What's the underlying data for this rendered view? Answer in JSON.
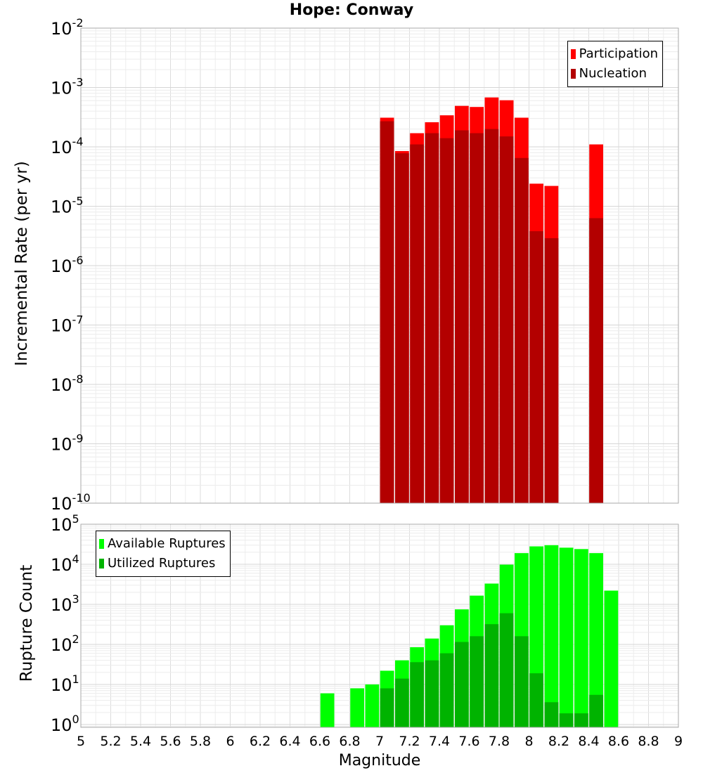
{
  "title": "Hope: Conway",
  "chart_data": [
    {
      "type": "bar",
      "ylabel": "Incremental Rate (per yr)",
      "xlabel": "",
      "yscale": "log",
      "ylim": [
        1e-10,
        0.01
      ],
      "xlim": [
        5,
        9
      ],
      "grid": true,
      "legend_position": "top-right",
      "bin_width": 0.1,
      "y_tick_labels": [
        {
          "base": "10",
          "exp": "-10"
        },
        {
          "base": "10",
          "exp": "-9"
        },
        {
          "base": "10",
          "exp": "-8"
        },
        {
          "base": "10",
          "exp": "-7"
        },
        {
          "base": "10",
          "exp": "-6"
        },
        {
          "base": "10",
          "exp": "-5"
        },
        {
          "base": "10",
          "exp": "-4"
        },
        {
          "base": "10",
          "exp": "-3"
        },
        {
          "base": "10",
          "exp": "-2"
        }
      ],
      "x": [
        7.05,
        7.15,
        7.25,
        7.35,
        7.45,
        7.55,
        7.65,
        7.75,
        7.85,
        7.95,
        8.05,
        8.15,
        8.45
      ],
      "series": [
        {
          "name": "Participation",
          "color": "#ff0000",
          "values": [
            0.00031,
            8.5e-05,
            0.00017,
            0.00026,
            0.00034,
            0.00049,
            0.00047,
            0.00068,
            0.00061,
            0.00031,
            2.4e-05,
            2.2e-05,
            0.00011
          ]
        },
        {
          "name": "Nucleation",
          "color": "#b30000",
          "values": [
            0.00027,
            7.8e-05,
            0.00011,
            0.00017,
            0.00014,
            0.00019,
            0.00017,
            0.0002,
            0.00015,
            6.5e-05,
            3.8e-06,
            2.9e-06,
            6.3e-06
          ]
        }
      ]
    },
    {
      "type": "bar",
      "ylabel": "Rupture Count",
      "xlabel": "Magnitude",
      "yscale": "log",
      "ylim": [
        0.85,
        100000
      ],
      "xlim": [
        5,
        9
      ],
      "grid": true,
      "legend_position": "top-left",
      "bin_width": 0.1,
      "x_tick_labels": [
        "5",
        "5.2",
        "5.4",
        "5.6",
        "5.8",
        "6",
        "6.2",
        "6.4",
        "6.6",
        "6.8",
        "7",
        "7.2",
        "7.4",
        "7.6",
        "7.8",
        "8",
        "8.2",
        "8.4",
        "8.6",
        "8.8",
        "9"
      ],
      "y_tick_labels": [
        {
          "base": "10",
          "exp": "0"
        },
        {
          "base": "10",
          "exp": "1"
        },
        {
          "base": "10",
          "exp": "2"
        },
        {
          "base": "10",
          "exp": "3"
        },
        {
          "base": "10",
          "exp": "4"
        },
        {
          "base": "10",
          "exp": "5"
        }
      ],
      "x": [
        6.65,
        6.85,
        6.95,
        7.05,
        7.15,
        7.25,
        7.35,
        7.45,
        7.55,
        7.65,
        7.75,
        7.85,
        7.95,
        8.05,
        8.15,
        8.25,
        8.35,
        8.45,
        8.55
      ],
      "series": [
        {
          "name": "Available Ruptures",
          "color": "#00ff00",
          "values": [
            6,
            8,
            10,
            22,
            40,
            85,
            140,
            300,
            750,
            1650,
            3300,
            9800,
            19000,
            28000,
            30000,
            26000,
            24000,
            19000,
            2200
          ]
        },
        {
          "name": "Utilized Ruptures",
          "color": "#00b300",
          "values": [
            0,
            0,
            0,
            8,
            14,
            36,
            40,
            60,
            115,
            160,
            320,
            600,
            160,
            19,
            3.6,
            1.9,
            1.9,
            5.5,
            0
          ]
        }
      ]
    }
  ]
}
